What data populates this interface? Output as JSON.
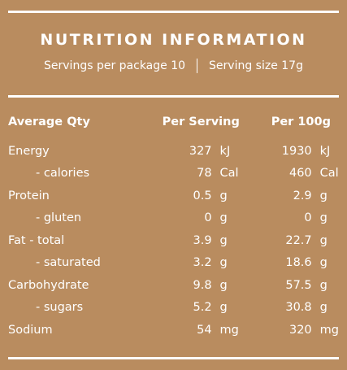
{
  "panel": {
    "title": "NUTRITION INFORMATION",
    "servings_per_package": "Servings per package 10",
    "serving_size": "Serving size 17g"
  },
  "table": {
    "headers": {
      "name": "Average Qty",
      "per_serving": "Per Serving",
      "per_100g": "Per 100g"
    },
    "rows": [
      {
        "name": "Energy",
        "sv": "327",
        "su": "kJ",
        "hv": "1930",
        "hu": "kJ",
        "sub": false
      },
      {
        "name": "- calories",
        "sv": "78",
        "su": "Cal",
        "hv": "460",
        "hu": "Cal",
        "sub": true
      },
      {
        "name": "Protein",
        "sv": "0.5",
        "su": "g",
        "hv": "2.9",
        "hu": "g",
        "sub": false
      },
      {
        "name": "- gluten",
        "sv": "0",
        "su": "g",
        "hv": "0",
        "hu": "g",
        "sub": true
      },
      {
        "name": "Fat - total",
        "sv": "3.9",
        "su": "g",
        "hv": "22.7",
        "hu": "g",
        "sub": false
      },
      {
        "name": "- saturated",
        "sv": "3.2",
        "su": "g",
        "hv": "18.6",
        "hu": "g",
        "sub": true
      },
      {
        "name": "Carbohydrate",
        "sv": "9.8",
        "su": "g",
        "hv": "57.5",
        "hu": "g",
        "sub": false
      },
      {
        "name": "- sugars",
        "sv": "5.2",
        "su": "g",
        "hv": "30.8",
        "hu": "g",
        "sub": true
      },
      {
        "name": "Sodium",
        "sv": "54",
        "su": "mg",
        "hv": "320",
        "hu": "mg",
        "sub": false
      }
    ]
  },
  "colors": {
    "background": "#b98c5f",
    "text": "#ffffff"
  }
}
